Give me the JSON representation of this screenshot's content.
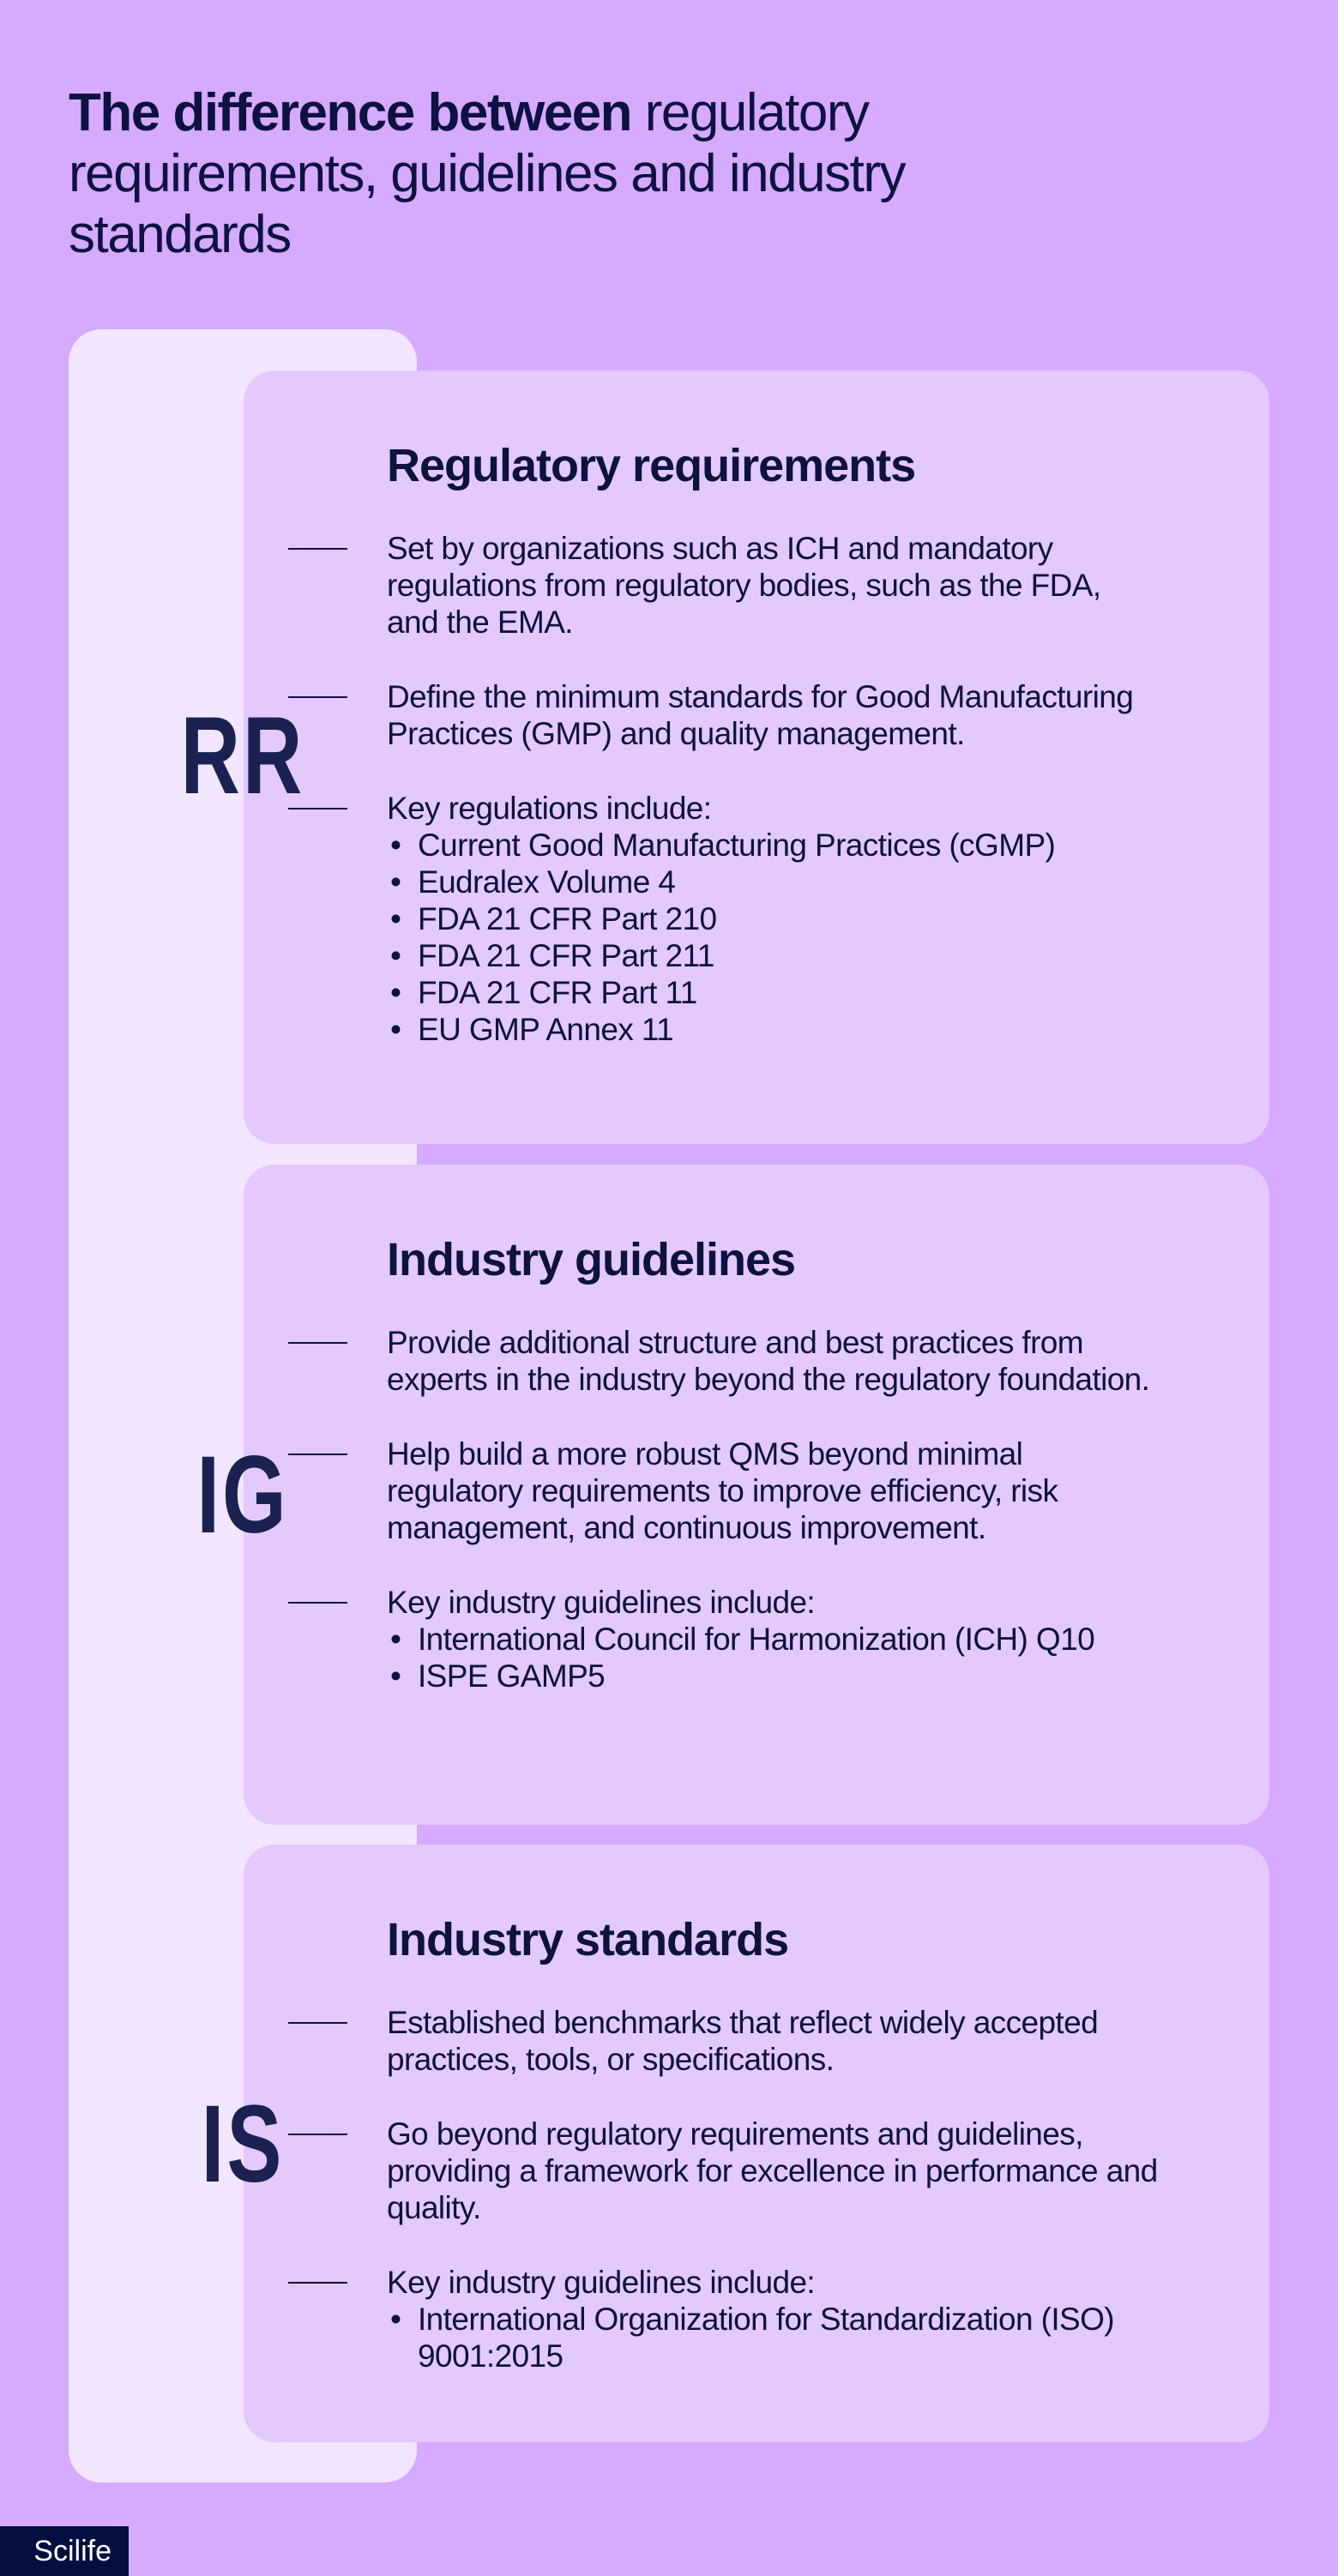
{
  "title": {
    "bold": "The difference between",
    "regular": " regulatory requirements, guidelines and industry standards"
  },
  "sections": [
    {
      "abbr": "RR",
      "heading": "Regulatory requirements",
      "points": [
        {
          "text": "Set by organizations such as ICH and mandatory regulations from regulatory bodies, such as the FDA, and the EMA."
        },
        {
          "text": "Define the minimum standards for Good Manufacturing Practices (GMP) and quality management."
        },
        {
          "text": "Key regulations include:",
          "items": [
            "Current Good Manufacturing Practices (cGMP)",
            "Eudralex Volume 4",
            "FDA 21 CFR Part 210",
            "FDA 21 CFR Part 211",
            "FDA 21 CFR Part 11",
            "EU GMP Annex 11"
          ]
        }
      ]
    },
    {
      "abbr": "IG",
      "heading": "Industry guidelines",
      "points": [
        {
          "text": "Provide additional structure and best practices from experts in the industry beyond the regulatory foundation."
        },
        {
          "text": "Help build a more robust QMS beyond minimal regulatory requirements to improve efficiency, risk management, and continuous improvement."
        },
        {
          "text": "Key industry guidelines include:",
          "items": [
            "International Council for Harmonization (ICH) Q10",
            "ISPE GAMP5"
          ]
        }
      ]
    },
    {
      "abbr": "IS",
      "heading": "Industry standards",
      "points": [
        {
          "text": "Established benchmarks that reflect widely accepted practices, tools, or specifications."
        },
        {
          "text": "Go beyond regulatory requirements and guidelines, providing a framework for excellence in performance and quality."
        },
        {
          "text": "Key industry guidelines include:",
          "items": [
            "International Organization for Standardization (ISO) 9001:2015"
          ]
        }
      ]
    }
  ],
  "brand": "Scilife",
  "colors": {
    "background": "#d5aaff",
    "column": "#f2e6fe",
    "card": "#e3c9ff",
    "text": "#0d1240",
    "badge": "#020f40"
  }
}
